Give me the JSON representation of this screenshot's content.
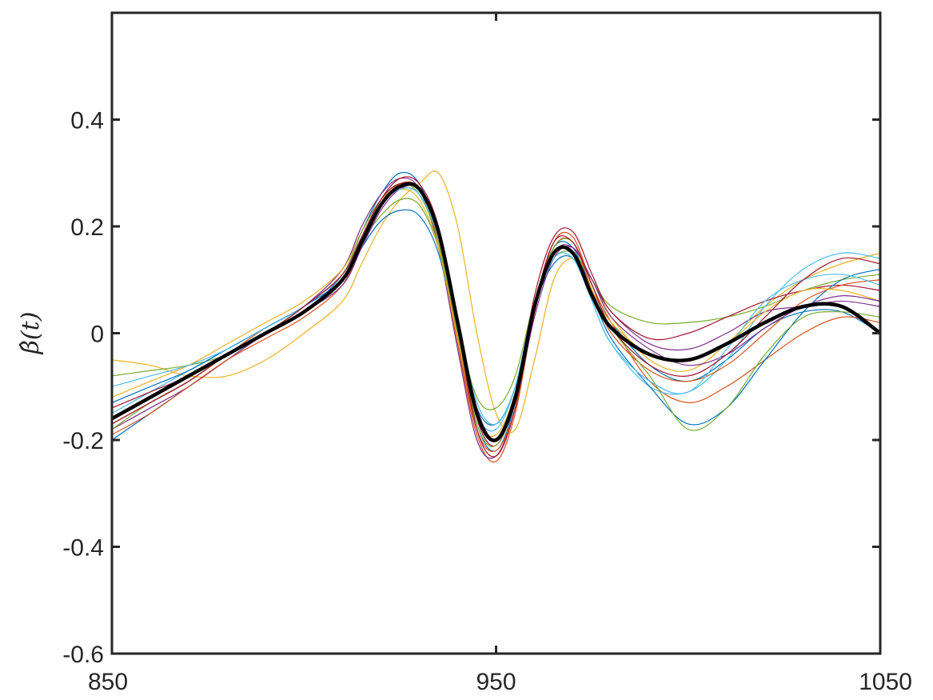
{
  "chart_data": {
    "type": "line",
    "title": "",
    "xlabel": "",
    "ylabel": "β̂(t)",
    "xlim": [
      850,
      1050
    ],
    "ylim": [
      -0.6,
      0.6
    ],
    "x_ticks": [
      850,
      950,
      1050
    ],
    "x_tick_labels": [
      "850",
      "950",
      "1050"
    ],
    "y_ticks": [
      -0.6,
      -0.4,
      -0.2,
      0,
      0.2,
      0.4
    ],
    "y_tick_labels": [
      "-0.6",
      "-0.4",
      "-0.2",
      "0",
      "0.2",
      "0.4"
    ],
    "grid": false,
    "box": true,
    "x": [
      850,
      860,
      870,
      880,
      890,
      900,
      910,
      915,
      920,
      925,
      930,
      935,
      940,
      945,
      950,
      955,
      960,
      965,
      970,
      975,
      980,
      990,
      1000,
      1010,
      1020,
      1030,
      1040,
      1050
    ],
    "mean_series": {
      "color": "#000000",
      "values": [
        -0.16,
        -0.12,
        -0.08,
        -0.04,
        0.0,
        0.04,
        0.1,
        0.17,
        0.24,
        0.275,
        0.27,
        0.19,
        0.02,
        -0.15,
        -0.2,
        -0.12,
        0.05,
        0.15,
        0.15,
        0.07,
        0.01,
        -0.04,
        -0.05,
        -0.02,
        0.02,
        0.05,
        0.05,
        0.0
      ]
    },
    "series": [
      {
        "color": "#0072BD",
        "values": [
          -0.2,
          -0.15,
          -0.1,
          -0.05,
          0.0,
          0.04,
          0.11,
          0.19,
          0.26,
          0.3,
          0.28,
          0.18,
          0.0,
          -0.17,
          -0.22,
          -0.13,
          0.05,
          0.16,
          0.16,
          0.08,
          0.02,
          -0.06,
          -0.09,
          -0.05,
          0.01,
          0.04,
          0.04,
          0.0
        ]
      },
      {
        "color": "#D95319",
        "values": [
          -0.17,
          -0.13,
          -0.09,
          -0.04,
          0.01,
          0.05,
          0.11,
          0.18,
          0.25,
          0.28,
          0.27,
          0.17,
          -0.02,
          -0.19,
          -0.24,
          -0.15,
          0.04,
          0.17,
          0.18,
          0.09,
          0.02,
          -0.09,
          -0.13,
          -0.1,
          -0.05,
          0.0,
          0.03,
          0.02
        ]
      },
      {
        "color": "#EDB120",
        "values": [
          -0.05,
          -0.06,
          -0.08,
          -0.08,
          -0.05,
          0.0,
          0.06,
          0.13,
          0.2,
          0.25,
          0.28,
          0.3,
          0.2,
          0.0,
          -0.15,
          -0.18,
          -0.05,
          0.1,
          0.14,
          0.1,
          0.03,
          -0.05,
          -0.07,
          -0.02,
          0.05,
          0.1,
          0.13,
          0.15
        ]
      },
      {
        "color": "#7E2F8E",
        "values": [
          -0.18,
          -0.14,
          -0.1,
          -0.05,
          0.0,
          0.05,
          0.12,
          0.2,
          0.26,
          0.29,
          0.27,
          0.16,
          -0.03,
          -0.2,
          -0.23,
          -0.14,
          0.04,
          0.15,
          0.16,
          0.1,
          0.04,
          -0.02,
          -0.03,
          0.0,
          0.04,
          0.05,
          0.06,
          0.05
        ]
      },
      {
        "color": "#77AC30",
        "values": [
          -0.08,
          -0.07,
          -0.06,
          -0.04,
          0.0,
          0.04,
          0.1,
          0.17,
          0.22,
          0.25,
          0.24,
          0.16,
          0.01,
          -0.12,
          -0.14,
          -0.08,
          0.06,
          0.14,
          0.15,
          0.1,
          0.05,
          0.02,
          0.02,
          0.03,
          0.05,
          0.08,
          0.1,
          0.11
        ]
      },
      {
        "color": "#4DBEEE",
        "values": [
          -0.15,
          -0.11,
          -0.07,
          -0.03,
          0.01,
          0.05,
          0.11,
          0.18,
          0.24,
          0.27,
          0.26,
          0.18,
          0.01,
          -0.15,
          -0.18,
          -0.1,
          0.06,
          0.15,
          0.15,
          0.06,
          -0.02,
          -0.1,
          -0.11,
          -0.05,
          0.05,
          0.12,
          0.15,
          0.14
        ]
      },
      {
        "color": "#A2142F",
        "values": [
          -0.14,
          -0.11,
          -0.08,
          -0.04,
          0.0,
          0.04,
          0.1,
          0.18,
          0.25,
          0.29,
          0.28,
          0.2,
          0.02,
          -0.16,
          -0.21,
          -0.12,
          0.07,
          0.18,
          0.19,
          0.11,
          0.04,
          -0.01,
          0.0,
          0.03,
          0.06,
          0.08,
          0.09,
          0.08
        ]
      },
      {
        "color": "#0072BD",
        "values": [
          -0.13,
          -0.1,
          -0.07,
          -0.03,
          0.01,
          0.05,
          0.1,
          0.16,
          0.21,
          0.23,
          0.22,
          0.15,
          0.0,
          -0.14,
          -0.17,
          -0.1,
          0.05,
          0.13,
          0.14,
          0.07,
          -0.01,
          -0.1,
          -0.17,
          -0.14,
          -0.05,
          0.04,
          0.1,
          0.12
        ]
      },
      {
        "color": "#D95319",
        "values": [
          -0.19,
          -0.15,
          -0.1,
          -0.05,
          -0.01,
          0.03,
          0.09,
          0.17,
          0.24,
          0.28,
          0.27,
          0.18,
          -0.01,
          -0.18,
          -0.22,
          -0.14,
          0.04,
          0.16,
          0.17,
          0.08,
          0.0,
          -0.07,
          -0.09,
          -0.06,
          0.0,
          0.06,
          0.09,
          0.1
        ]
      },
      {
        "color": "#EDB120",
        "values": [
          -0.12,
          -0.09,
          -0.06,
          -0.02,
          0.02,
          0.06,
          0.12,
          0.19,
          0.25,
          0.27,
          0.25,
          0.16,
          -0.01,
          -0.16,
          -0.19,
          -0.11,
          0.06,
          0.15,
          0.15,
          0.08,
          0.02,
          -0.04,
          -0.05,
          -0.02,
          0.04,
          0.08,
          0.08,
          0.06
        ]
      },
      {
        "color": "#7E2F8E",
        "values": [
          -0.16,
          -0.12,
          -0.08,
          -0.04,
          0.0,
          0.04,
          0.09,
          0.16,
          0.23,
          0.27,
          0.27,
          0.2,
          0.03,
          -0.14,
          -0.2,
          -0.13,
          0.03,
          0.14,
          0.16,
          0.1,
          0.03,
          -0.03,
          -0.06,
          -0.04,
          0.01,
          0.05,
          0.07,
          0.06
        ]
      },
      {
        "color": "#77AC30",
        "values": [
          -0.18,
          -0.13,
          -0.09,
          -0.04,
          0.0,
          0.05,
          0.11,
          0.19,
          0.25,
          0.28,
          0.26,
          0.17,
          0.0,
          -0.17,
          -0.21,
          -0.12,
          0.05,
          0.16,
          0.17,
          0.09,
          0.01,
          -0.08,
          -0.18,
          -0.14,
          -0.04,
          0.03,
          0.04,
          0.03
        ]
      },
      {
        "color": "#4DBEEE",
        "values": [
          -0.1,
          -0.08,
          -0.06,
          -0.03,
          0.01,
          0.05,
          0.11,
          0.18,
          0.24,
          0.27,
          0.26,
          0.18,
          0.02,
          -0.13,
          -0.17,
          -0.1,
          0.05,
          0.14,
          0.14,
          0.06,
          -0.02,
          -0.09,
          -0.11,
          -0.03,
          0.06,
          0.1,
          0.11,
          0.09
        ]
      },
      {
        "color": "#A2142F",
        "values": [
          -0.17,
          -0.13,
          -0.09,
          -0.04,
          0.0,
          0.05,
          0.11,
          0.18,
          0.25,
          0.28,
          0.27,
          0.19,
          0.01,
          -0.18,
          -0.23,
          -0.14,
          0.05,
          0.17,
          0.17,
          0.09,
          0.01,
          -0.06,
          -0.08,
          -0.04,
          0.03,
          0.1,
          0.14,
          0.13
        ]
      }
    ]
  }
}
